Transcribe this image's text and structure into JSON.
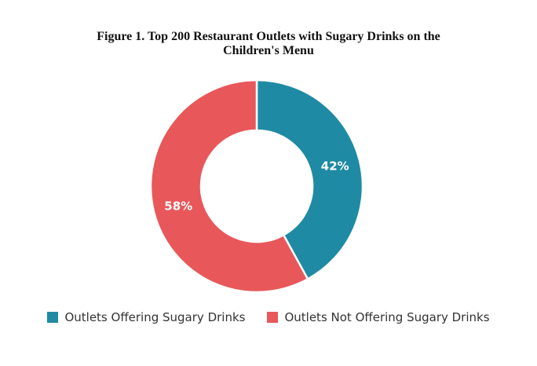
{
  "title_line1": "Figure 1. Top 200 Restaurant Outlets with Sugary Drinks on the",
  "title_line2": "Children's Menu",
  "chart_data": {
    "type": "pie",
    "style": "donut",
    "title": "Figure 1. Top 200 Restaurant Outlets with Sugary Drinks on the Children's Menu",
    "series": [
      {
        "name": "Outlets Offering Sugary Drinks",
        "value": 42,
        "label": "42%",
        "color": "#1f8aa3"
      },
      {
        "name": "Outlets Not Offering Sugary Drinks",
        "value": 58,
        "label": "58%",
        "color": "#e8575a"
      }
    ],
    "legend_position": "bottom"
  }
}
